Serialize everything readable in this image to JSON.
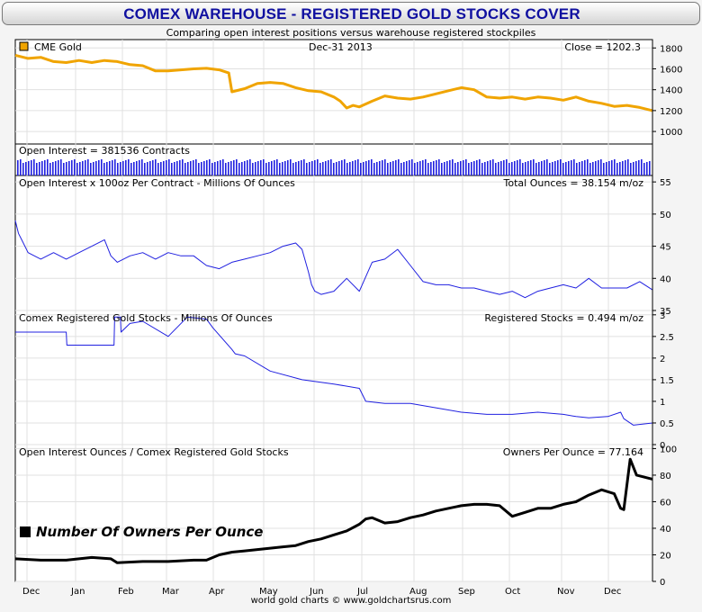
{
  "title": "COMEX WAREHOUSE - REGISTERED GOLD STOCKS COVER",
  "subtitle": "Comparing open interest positions versus warehouse registered stockpiles",
  "footer": "world gold charts © www.goldchartsrus.com",
  "colors": {
    "gold": "#f0a400",
    "blue": "#2020e0",
    "black": "#000000",
    "frame": "#f4f4f4",
    "title": "#1010a0"
  },
  "chart_data": [
    {
      "type": "line",
      "panel": "price",
      "legend": "CME Gold",
      "date_label": "Dec-31  2013",
      "readout": "Close = 1202.3",
      "ylim": [
        880,
        1880
      ],
      "yticks": [
        1000,
        1200,
        1400,
        1600,
        1800
      ],
      "x": [
        0,
        0.02,
        0.04,
        0.06,
        0.08,
        0.1,
        0.12,
        0.14,
        0.16,
        0.18,
        0.2,
        0.22,
        0.24,
        0.26,
        0.28,
        0.3,
        0.32,
        0.335,
        0.34,
        0.36,
        0.38,
        0.4,
        0.42,
        0.44,
        0.46,
        0.48,
        0.5,
        0.51,
        0.52,
        0.53,
        0.54,
        0.56,
        0.58,
        0.6,
        0.62,
        0.64,
        0.66,
        0.68,
        0.7,
        0.72,
        0.74,
        0.76,
        0.78,
        0.8,
        0.82,
        0.84,
        0.86,
        0.88,
        0.9,
        0.92,
        0.94,
        0.96,
        0.98,
        1.0
      ],
      "values": [
        1730,
        1700,
        1710,
        1670,
        1660,
        1680,
        1660,
        1680,
        1670,
        1640,
        1630,
        1580,
        1580,
        1590,
        1600,
        1605,
        1590,
        1560,
        1380,
        1410,
        1460,
        1470,
        1460,
        1420,
        1390,
        1380,
        1330,
        1290,
        1225,
        1250,
        1235,
        1290,
        1340,
        1320,
        1310,
        1330,
        1360,
        1390,
        1420,
        1400,
        1330,
        1320,
        1330,
        1310,
        1330,
        1320,
        1300,
        1330,
        1290,
        1270,
        1240,
        1250,
        1230,
        1200
      ]
    },
    {
      "type": "bar",
      "panel": "open-interest-bars",
      "label": "Open Interest = 381536 Contracts"
    },
    {
      "type": "line",
      "panel": "open-interest-ounces",
      "label": "Open Interest x 100oz Per Contract - Millions Of Ounces",
      "readout": "Total Ounces = 38.154 m/oz",
      "ylim": [
        35,
        56
      ],
      "yticks": [
        35,
        40,
        45,
        50,
        55
      ],
      "x": [
        0,
        0.005,
        0.01,
        0.02,
        0.04,
        0.06,
        0.08,
        0.1,
        0.12,
        0.14,
        0.15,
        0.16,
        0.18,
        0.2,
        0.22,
        0.24,
        0.26,
        0.28,
        0.3,
        0.32,
        0.34,
        0.36,
        0.38,
        0.4,
        0.42,
        0.44,
        0.45,
        0.46,
        0.465,
        0.47,
        0.48,
        0.5,
        0.52,
        0.54,
        0.56,
        0.58,
        0.6,
        0.62,
        0.64,
        0.66,
        0.68,
        0.7,
        0.72,
        0.74,
        0.76,
        0.78,
        0.8,
        0.82,
        0.84,
        0.86,
        0.88,
        0.9,
        0.92,
        0.94,
        0.96,
        0.98,
        1.0
      ],
      "values": [
        49,
        47,
        46,
        44,
        43,
        44,
        43,
        44,
        45,
        46,
        43.5,
        42.5,
        43.5,
        44,
        43,
        44,
        43.5,
        43.5,
        42,
        41.5,
        42.5,
        43,
        43.5,
        44,
        45,
        45.5,
        44.5,
        41,
        39,
        38,
        37.5,
        38,
        40,
        38,
        42.5,
        43,
        44.5,
        42,
        39.5,
        39,
        39,
        38.5,
        38.5,
        38,
        37.5,
        38,
        37,
        38,
        38.5,
        39,
        38.5,
        40,
        38.5,
        38.5,
        38.5,
        39.5,
        38.2
      ]
    },
    {
      "type": "line",
      "panel": "registered-stocks",
      "label": "Comex Registered Gold Stocks - Millions Of Ounces",
      "readout": "Registered Stocks = 0.494 m/oz",
      "ylim": [
        0,
        3.1
      ],
      "yticks": [
        0,
        0.5,
        1,
        1.5,
        2,
        2.5,
        3
      ],
      "x": [
        0,
        0.08,
        0.081,
        0.155,
        0.156,
        0.165,
        0.166,
        0.18,
        0.2,
        0.24,
        0.27,
        0.3,
        0.31,
        0.34,
        0.345,
        0.36,
        0.4,
        0.45,
        0.5,
        0.54,
        0.55,
        0.58,
        0.62,
        0.66,
        0.7,
        0.74,
        0.78,
        0.82,
        0.86,
        0.88,
        0.9,
        0.93,
        0.95,
        0.955,
        0.97,
        1.0
      ],
      "values": [
        2.6,
        2.6,
        2.3,
        2.3,
        2.95,
        2.95,
        2.6,
        2.8,
        2.85,
        2.5,
        2.95,
        2.9,
        2.7,
        2.2,
        2.1,
        2.05,
        1.7,
        1.5,
        1.4,
        1.3,
        1.0,
        0.95,
        0.95,
        0.85,
        0.75,
        0.7,
        0.7,
        0.75,
        0.7,
        0.65,
        0.62,
        0.65,
        0.75,
        0.6,
        0.45,
        0.5
      ]
    },
    {
      "type": "line",
      "panel": "owners-per-ounce",
      "label": "Open Interest Ounces / Comex Registered Gold Stocks",
      "readout": "Owners Per Ounce = 77.164",
      "legend": "Number Of Owners Per Ounce",
      "ylim": [
        0,
        103
      ],
      "yticks": [
        0,
        20,
        40,
        60,
        80,
        100
      ],
      "x": [
        0,
        0.04,
        0.08,
        0.12,
        0.15,
        0.16,
        0.2,
        0.24,
        0.28,
        0.3,
        0.32,
        0.34,
        0.36,
        0.38,
        0.4,
        0.42,
        0.44,
        0.46,
        0.48,
        0.5,
        0.52,
        0.54,
        0.55,
        0.56,
        0.58,
        0.6,
        0.62,
        0.64,
        0.66,
        0.68,
        0.7,
        0.72,
        0.74,
        0.76,
        0.78,
        0.8,
        0.82,
        0.84,
        0.86,
        0.88,
        0.9,
        0.92,
        0.94,
        0.95,
        0.955,
        0.965,
        0.975,
        1.0
      ],
      "values": [
        17,
        16,
        16,
        18,
        17,
        14,
        15,
        15,
        16,
        16,
        20,
        22,
        23,
        24,
        25,
        26,
        27,
        30,
        32,
        35,
        38,
        43,
        47,
        48,
        44,
        45,
        48,
        50,
        53,
        55,
        57,
        58,
        58,
        57,
        49,
        52,
        55,
        55,
        58,
        60,
        65,
        69,
        66,
        55,
        54,
        92,
        80,
        77
      ]
    }
  ],
  "x_axis": {
    "months": [
      "Dec",
      "Jan",
      "Feb",
      "Mar",
      "Apr",
      "May",
      "Jun",
      "Jul",
      "Aug",
      "Sep",
      "Oct",
      "Nov",
      "Dec"
    ]
  }
}
